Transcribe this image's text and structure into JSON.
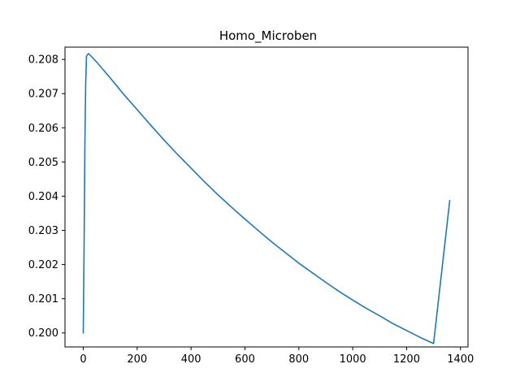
{
  "chart_data": {
    "type": "line",
    "title": "Homo_Microben",
    "xlabel": "",
    "ylabel": "",
    "xlim": [
      -67.8,
      1427.8
    ],
    "ylim": [
      0.19959,
      0.20836
    ],
    "x_ticks": [
      0,
      200,
      400,
      600,
      800,
      1000,
      1200,
      1400
    ],
    "y_ticks": [
      0.2,
      0.201,
      0.202,
      0.203,
      0.204,
      0.205,
      0.206,
      0.207,
      0.208
    ],
    "x_tick_labels": [
      "0",
      "200",
      "400",
      "600",
      "800",
      "1000",
      "1200",
      "1400"
    ],
    "y_tick_labels": [
      "0.200",
      "0.201",
      "0.202",
      "0.203",
      "0.204",
      "0.205",
      "0.206",
      "0.207",
      "0.208"
    ],
    "grid": false,
    "series": [
      {
        "color": "#1f77b4",
        "x": [
          0,
          3,
          6,
          9,
          12,
          15,
          18,
          20,
          50,
          100,
          150,
          200,
          250,
          300,
          350,
          400,
          450,
          500,
          550,
          600,
          650,
          700,
          750,
          800,
          850,
          900,
          950,
          1000,
          1050,
          1100,
          1150,
          1200,
          1250,
          1300,
          1360
        ],
        "values": [
          0.2,
          0.2025,
          0.2055,
          0.2073,
          0.2081,
          0.20813,
          0.20816,
          0.20817,
          0.20792,
          0.20746,
          0.20698,
          0.20653,
          0.20608,
          0.20564,
          0.20522,
          0.20482,
          0.20442,
          0.20404,
          0.20368,
          0.20333,
          0.20299,
          0.20266,
          0.20235,
          0.20204,
          0.20176,
          0.20148,
          0.20121,
          0.20096,
          0.20072,
          0.2005,
          0.20027,
          0.20007,
          0.19987,
          0.19969,
          0.20387
        ]
      }
    ]
  }
}
